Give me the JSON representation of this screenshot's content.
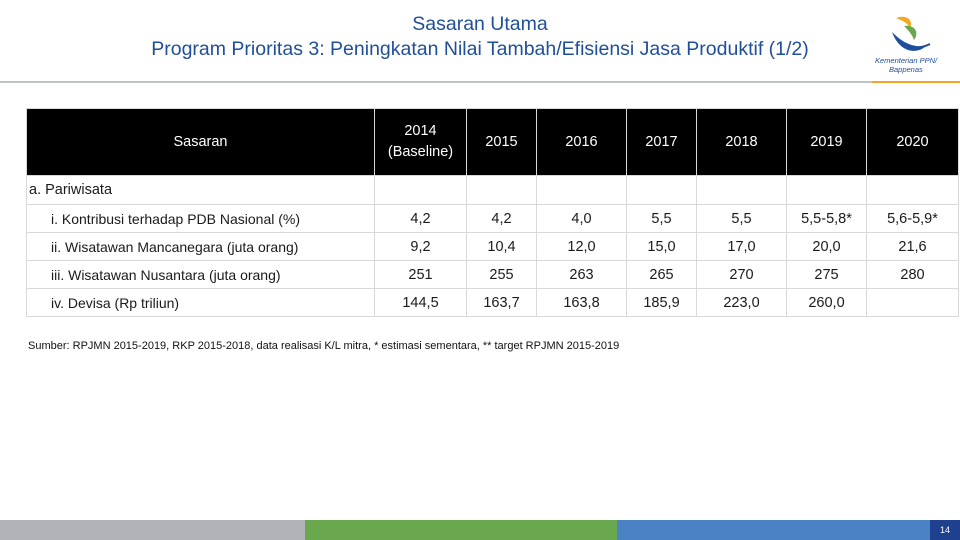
{
  "header": {
    "title_line1": "Sasaran Utama",
    "title_line2": "Program Prioritas 3: Peningkatan Nilai Tambah/Efisiensi Jasa Produktif (1/2)"
  },
  "logo": {
    "text_line1": "Kementerian PPN/",
    "text_line2": "Bappenas",
    "colors": {
      "blue": "#1f4e9b",
      "orange": "#f5a623",
      "green": "#6aa84f"
    }
  },
  "table": {
    "header_label": "Sasaran",
    "year_headers": [
      "2014 (Baseline)",
      "2015",
      "2016",
      "2017",
      "2018",
      "2019",
      "2020"
    ],
    "baseline_line1": "2014",
    "baseline_line2": "(Baseline)",
    "section_label": "a. Pariwisata",
    "rows": [
      {
        "label": "i.  Kontribusi terhadap PDB Nasional (%)",
        "values": [
          "4,2",
          "4,2",
          "4,0",
          "5,5",
          "5,5",
          "5,5-5,8*",
          "5,6-5,9*"
        ]
      },
      {
        "label": "ii.  Wisatawan Mancanegara (juta orang)",
        "values": [
          "9,2",
          "10,4",
          "12,0",
          "15,0",
          "17,0",
          "20,0",
          "21,6"
        ]
      },
      {
        "label": "iii. Wisatawan Nusantara (juta orang)",
        "values": [
          "251",
          "255",
          "263",
          "265",
          "270",
          "275",
          "280"
        ]
      },
      {
        "label": "iv.  Devisa (Rp triliun)",
        "values": [
          "144,5",
          "163,7",
          "163,8",
          "185,9",
          "223,0",
          "260,0",
          ""
        ]
      }
    ]
  },
  "source": "Sumber: RPJMN 2015-2019, RKP 2015-2018, data realisasi K/L mitra, * estimasi sementara, ** target RPJMN 2015-2019",
  "footer": {
    "page_number": "14",
    "bar_colors": [
      "#b0b3b8",
      "#6aa84f",
      "#4a82c3",
      "#1f3f8f"
    ]
  }
}
